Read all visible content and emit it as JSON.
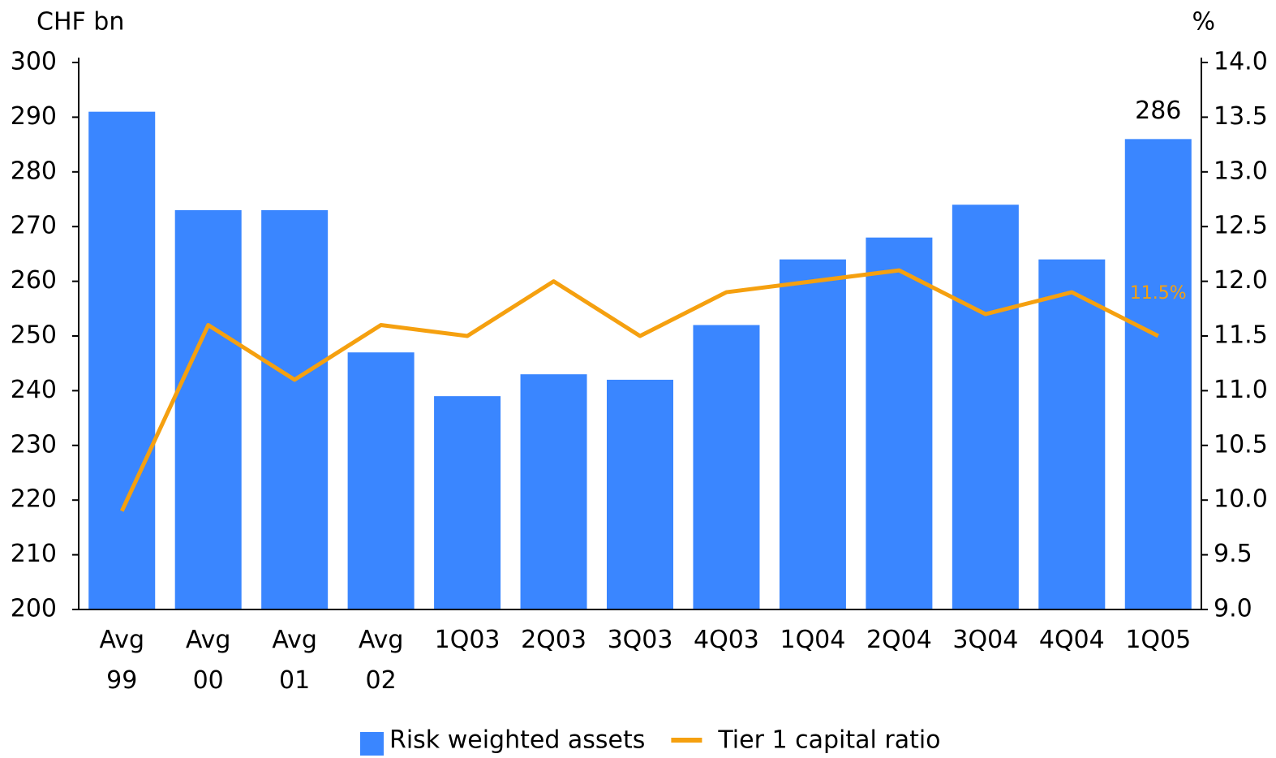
{
  "chart_data": {
    "type": "bar_line",
    "y_label": "CHF bn",
    "y2_label": "%",
    "categories": [
      "Avg 99",
      "Avg 00",
      "Avg 01",
      "Avg 02",
      "1Q03",
      "2Q03",
      "3Q03",
      "4Q03",
      "1Q04",
      "2Q04",
      "3Q04",
      "4Q04",
      "1Q05"
    ],
    "series": [
      {
        "name": "Risk weighted assets",
        "type": "bar",
        "color": "#3a86ff",
        "values": [
          291,
          273,
          273,
          247,
          239,
          243,
          242,
          252,
          264,
          268,
          274,
          264,
          286
        ],
        "value_labels": [
          null,
          null,
          null,
          null,
          null,
          null,
          null,
          null,
          null,
          null,
          null,
          null,
          "286"
        ]
      },
      {
        "name": "Tier 1 capital ratio",
        "type": "line",
        "axis": "y2",
        "color": "#f5a00f",
        "values": [
          9.9,
          11.6,
          11.1,
          11.6,
          11.5,
          12.0,
          11.5,
          11.9,
          12.0,
          12.1,
          11.7,
          11.9,
          11.5
        ],
        "value_labels": [
          null,
          null,
          null,
          null,
          null,
          null,
          null,
          null,
          null,
          null,
          null,
          null,
          "11.5%"
        ]
      }
    ],
    "ylim": [
      200,
      300
    ],
    "yticks": [
      200,
      210,
      220,
      230,
      240,
      250,
      260,
      270,
      280,
      290,
      300
    ],
    "y2lim": [
      9,
      14
    ],
    "y2ticks": [
      {
        "value": 9,
        "label": "9.0"
      },
      9.5,
      {
        "value": 10,
        "label": "10.0"
      },
      10.5,
      {
        "value": 11,
        "label": "11.0"
      },
      11.5,
      {
        "value": 12,
        "label": "12.0"
      },
      12.5,
      {
        "value": 13,
        "label": "13.0"
      },
      13.5,
      {
        "value": 14,
        "label": "14.0"
      }
    ],
    "legend": "bottom"
  }
}
